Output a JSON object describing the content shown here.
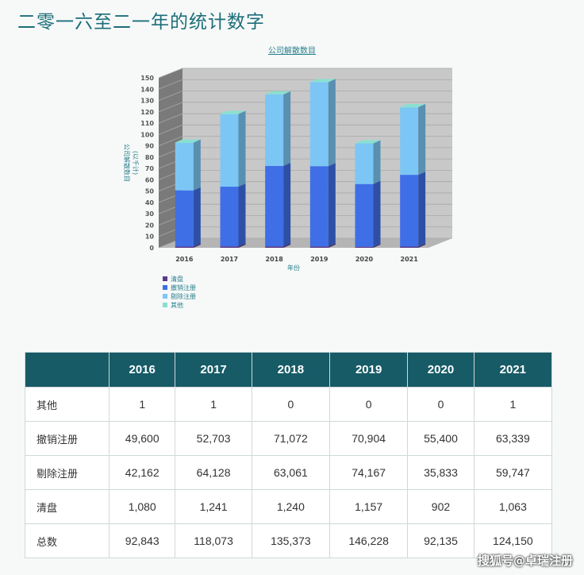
{
  "page_title": "二零一六至二一年的统计数字",
  "watermark": "搜狐号@卓瑞注册",
  "chart_data": {
    "type": "bar",
    "stacked": true,
    "three_d": true,
    "title": "公司解散数目",
    "xlabel": "年份",
    "ylabel": "公司解散数目",
    "ylabel_unit": "(以千计)",
    "ylim": [
      0,
      150
    ],
    "yticks": [
      0,
      10,
      20,
      30,
      40,
      50,
      60,
      70,
      80,
      90,
      100,
      110,
      120,
      130,
      140,
      150
    ],
    "categories": [
      "2016",
      "2017",
      "2018",
      "2019",
      "2020",
      "2021"
    ],
    "series": [
      {
        "name": "清盘",
        "values": [
          1.08,
          1.241,
          1.24,
          1.157,
          0.902,
          1.063
        ]
      },
      {
        "name": "撤销注册",
        "values": [
          49.6,
          52.703,
          71.072,
          70.904,
          55.4,
          63.339
        ]
      },
      {
        "name": "剔除注册",
        "values": [
          42.162,
          64.128,
          63.061,
          74.167,
          35.833,
          59.747
        ]
      },
      {
        "name": "其他",
        "values": [
          0.001,
          0.001,
          0,
          0,
          0,
          0.001
        ]
      }
    ],
    "legend_position": "bottom-left",
    "grid": true,
    "colors": {
      "清盘": "#5a3a8a",
      "撤销注册": "#3f6fe6",
      "剔除注册": "#7cc6f5",
      "其他": "#8ae0d0",
      "wall": "#c8c8c8",
      "wall_side": "#7a7a7a",
      "floor": "#b5b5b5",
      "axis_text": "#2a7f8c"
    }
  },
  "table": {
    "headers": [
      "",
      "2016",
      "2017",
      "2018",
      "2019",
      "2020",
      "2021"
    ],
    "rows": [
      {
        "label": "其他",
        "values": [
          "1",
          "1",
          "0",
          "0",
          "0",
          "1"
        ]
      },
      {
        "label": "撤销注册",
        "values": [
          "49,600",
          "52,703",
          "71,072",
          "70,904",
          "55,400",
          "63,339"
        ]
      },
      {
        "label": "剔除注册",
        "values": [
          "42,162",
          "64,128",
          "63,061",
          "74,167",
          "35,833",
          "59,747"
        ]
      },
      {
        "label": "清盘",
        "values": [
          "1,080",
          "1,241",
          "1,240",
          "1,157",
          "902",
          "1,063"
        ]
      },
      {
        "label": "总数",
        "values": [
          "92,843",
          "118,073",
          "135,373",
          "146,228",
          "92,135",
          "124,150"
        ]
      }
    ]
  }
}
